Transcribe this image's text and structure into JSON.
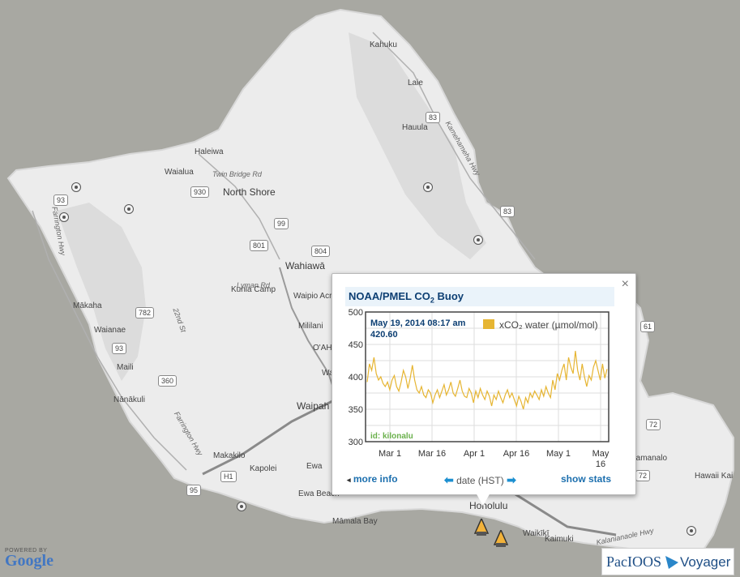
{
  "map": {
    "places": [
      {
        "name": "Kahuku",
        "cls": ""
      },
      {
        "name": "Laie",
        "cls": ""
      },
      {
        "name": "Hauula",
        "cls": ""
      },
      {
        "name": "Kamehameha Hwy",
        "cls": "road"
      },
      {
        "name": "Haleiwa",
        "cls": ""
      },
      {
        "name": "Waialua",
        "cls": ""
      },
      {
        "name": "Twin Bridge Rd",
        "cls": "road"
      },
      {
        "name": "North Shore",
        "cls": "big"
      },
      {
        "name": "Wahiawā",
        "cls": "big"
      },
      {
        "name": "Lyman Rd",
        "cls": "road"
      },
      {
        "name": "Waipio Acres",
        "cls": ""
      },
      {
        "name": "Kunia Camp",
        "cls": ""
      },
      {
        "name": "Mililani",
        "cls": ""
      },
      {
        "name": "Mākaha",
        "cls": ""
      },
      {
        "name": "Waianae",
        "cls": ""
      },
      {
        "name": "Maili",
        "cls": ""
      },
      {
        "name": "Nānākuli",
        "cls": ""
      },
      {
        "name": "Waipah",
        "cls": "big"
      },
      {
        "name": "Makakilo",
        "cls": ""
      },
      {
        "name": "Kapolei",
        "cls": ""
      },
      {
        "name": "Ewa",
        "cls": ""
      },
      {
        "name": "Ewa Beach",
        "cls": ""
      },
      {
        "name": "Māmala Bay",
        "cls": ""
      },
      {
        "name": "Honolulu",
        "cls": "big"
      },
      {
        "name": "Waikīkī",
        "cls": ""
      },
      {
        "name": "Kaimuki",
        "cls": ""
      },
      {
        "name": "Kalanianaole Hwy",
        "cls": "road"
      },
      {
        "name": "Hawaii Kai",
        "cls": ""
      },
      {
        "name": "Kamanalo",
        "cls": ""
      },
      {
        "name": "Farrington Hwy",
        "cls": "road"
      },
      {
        "name": "Farrington Hwy",
        "cls": "road"
      },
      {
        "name": "22nd St",
        "cls": "road"
      },
      {
        "name": "O'AH",
        "cls": ""
      },
      {
        "name": "Wa",
        "cls": ""
      }
    ],
    "shields": [
      "930",
      "83",
      "83",
      "99",
      "801",
      "804",
      "93",
      "782",
      "93",
      "360",
      "H1",
      "95",
      "72",
      "72",
      "61"
    ]
  },
  "popup": {
    "title_main": "NOAA/PMEL CO",
    "title_sub": "2",
    "title_tail": " Buoy",
    "close": "×",
    "more_info": "more info",
    "date_label": "date (HST)",
    "show_stats": "show stats",
    "more_arrow": "◂",
    "left_arrow": "⬅",
    "right_arrow": "➡"
  },
  "chart_data": {
    "type": "line",
    "title": "",
    "xlabel": "",
    "ylabel": "",
    "ylim": [
      300,
      500
    ],
    "yticks": [
      "500",
      "450",
      "400",
      "350",
      "300"
    ],
    "xticks": [
      {
        "line1": "Mar 1",
        "line2": ""
      },
      {
        "line1": "Mar 16",
        "line2": ""
      },
      {
        "line1": "Apr 1",
        "line2": ""
      },
      {
        "line1": "Apr 16",
        "line2": ""
      },
      {
        "line1": "May 1",
        "line2": ""
      },
      {
        "line1": "May",
        "line2": "16"
      }
    ],
    "series": [
      {
        "name": "xCO₂ water (µmol/mol)",
        "color": "#e6b532",
        "x_start": "Feb 23, 2014",
        "x_end": "May 19, 2014",
        "values": [
          392,
          420,
          410,
          430,
          405,
          395,
          400,
          390,
          385,
          392,
          380,
          395,
          402,
          385,
          378,
          392,
          410,
          400,
          382,
          398,
          418,
          395,
          380,
          375,
          385,
          372,
          368,
          380,
          375,
          360,
          372,
          380,
          368,
          378,
          388,
          372,
          380,
          392,
          375,
          370,
          382,
          395,
          378,
          370,
          368,
          382,
          375,
          360,
          378,
          368,
          382,
          372,
          365,
          378,
          370,
          355,
          372,
          365,
          378,
          368,
          360,
          372,
          380,
          368,
          375,
          365,
          355,
          370,
          362,
          350,
          368,
          360,
          375,
          368,
          378,
          372,
          365,
          380,
          370,
          385,
          375,
          368,
          395,
          380,
          405,
          395,
          410,
          420,
          395,
          430,
          415,
          405,
          440,
          410,
          395,
          420,
          400,
          385,
          402,
          395,
          415,
          425,
          410,
          395,
          420,
          398,
          412
        ]
      }
    ],
    "tooltip": {
      "date": "May 19, 2014 08:17 am",
      "value": "420.60"
    },
    "id_label": "id: kilonalu",
    "grid": true,
    "legend": "top-right"
  },
  "logos": {
    "google_powered": "POWERED BY",
    "google_word": "Google",
    "pacioos": "PacIOOS",
    "voyager": "Voyager"
  }
}
